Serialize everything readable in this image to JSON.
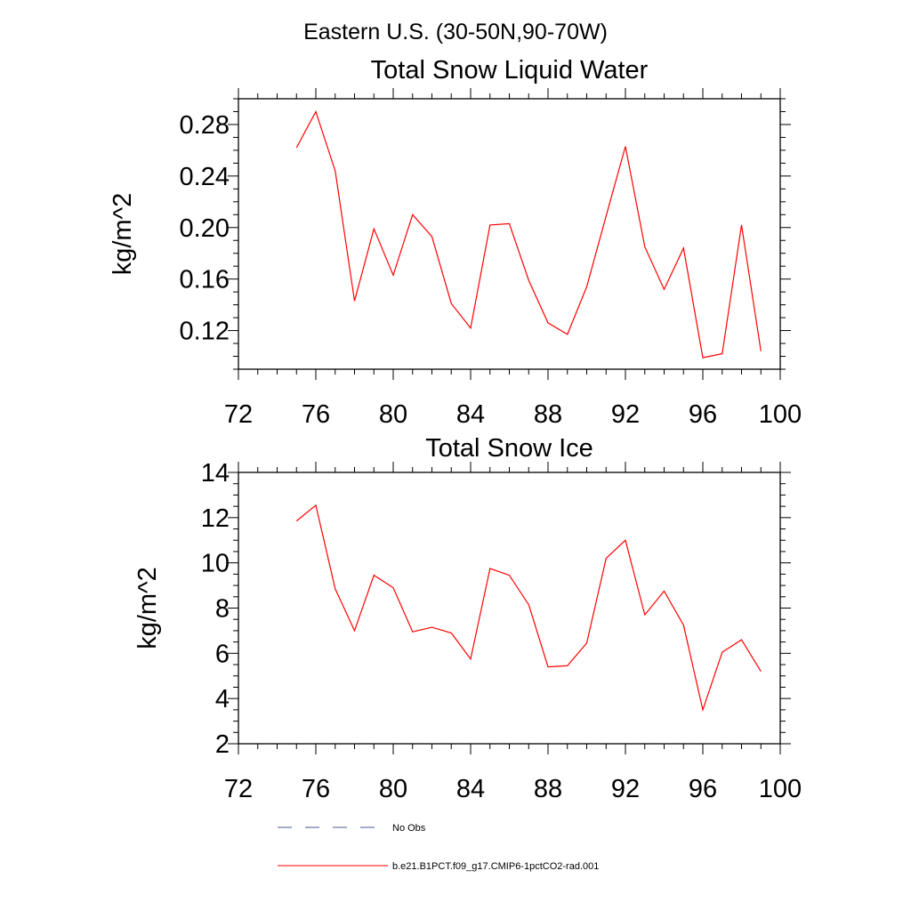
{
  "page": {
    "region_title": "Eastern U.S. (30-50N,90-70W)"
  },
  "chart_data": [
    {
      "type": "line",
      "title": "Total Snow Liquid Water",
      "xlabel": "",
      "ylabel": "kg/m^2",
      "xlim": [
        72,
        100
      ],
      "ylim": [
        0.09,
        0.3
      ],
      "xticks": [
        72,
        76,
        80,
        84,
        88,
        92,
        96,
        100
      ],
      "xtick_labels": [
        "72",
        "76",
        "80",
        "84",
        "88",
        "92",
        "96",
        "100"
      ],
      "yticks": [
        0.12,
        0.16,
        0.2,
        0.24,
        0.28
      ],
      "ytick_labels": [
        "0.12",
        "0.16",
        "0.20",
        "0.24",
        "0.28"
      ],
      "grid": false,
      "x": [
        75,
        76,
        77,
        78,
        79,
        80,
        81,
        82,
        83,
        84,
        85,
        86,
        87,
        88,
        89,
        90,
        91,
        92,
        93,
        94,
        95,
        96,
        97,
        98,
        99
      ],
      "series": [
        {
          "name": "b.e21.B1PCT.f09_g17.CMIP6-1pctCO2-rad.001",
          "color": "#ff0000",
          "values": [
            0.262,
            0.29,
            0.244,
            0.143,
            0.199,
            0.163,
            0.21,
            0.193,
            0.141,
            0.122,
            0.202,
            0.203,
            0.159,
            0.126,
            0.117,
            0.154,
            0.209,
            0.263,
            0.185,
            0.152,
            0.184,
            0.099,
            0.102,
            0.202,
            0.104
          ]
        }
      ]
    },
    {
      "type": "line",
      "title": "Total Snow Ice",
      "xlabel": "",
      "ylabel": "kg/m^2",
      "xlim": [
        72,
        100
      ],
      "ylim": [
        2,
        14
      ],
      "xticks": [
        72,
        76,
        80,
        84,
        88,
        92,
        96,
        100
      ],
      "xtick_labels": [
        "72",
        "76",
        "80",
        "84",
        "88",
        "92",
        "96",
        "100"
      ],
      "yticks": [
        2,
        4,
        6,
        8,
        10,
        12,
        14
      ],
      "ytick_labels": [
        "2",
        "4",
        "6",
        "8",
        "10",
        "12",
        "14"
      ],
      "grid": false,
      "x": [
        75,
        76,
        77,
        78,
        79,
        80,
        81,
        82,
        83,
        84,
        85,
        86,
        87,
        88,
        89,
        90,
        91,
        92,
        93,
        94,
        95,
        96,
        97,
        98,
        99
      ],
      "series": [
        {
          "name": "b.e21.B1PCT.f09_g17.CMIP6-1pctCO2-rad.001",
          "color": "#ff0000",
          "values": [
            11.85,
            12.55,
            8.85,
            7.0,
            9.45,
            8.9,
            6.95,
            7.15,
            6.9,
            5.75,
            9.75,
            9.45,
            8.15,
            5.4,
            5.45,
            6.45,
            10.2,
            11.0,
            7.7,
            8.75,
            7.25,
            3.5,
            6.05,
            6.6,
            5.2
          ]
        }
      ]
    }
  ],
  "legend": {
    "placement": "bottom",
    "items": [
      {
        "label": "No Obs",
        "style": "dashed",
        "color": "#4a5a9a"
      },
      {
        "label": "b.e21.B1PCT.f09_g17.CMIP6-1pctCO2-rad.001",
        "style": "solid",
        "color": "#ff0000"
      }
    ]
  }
}
